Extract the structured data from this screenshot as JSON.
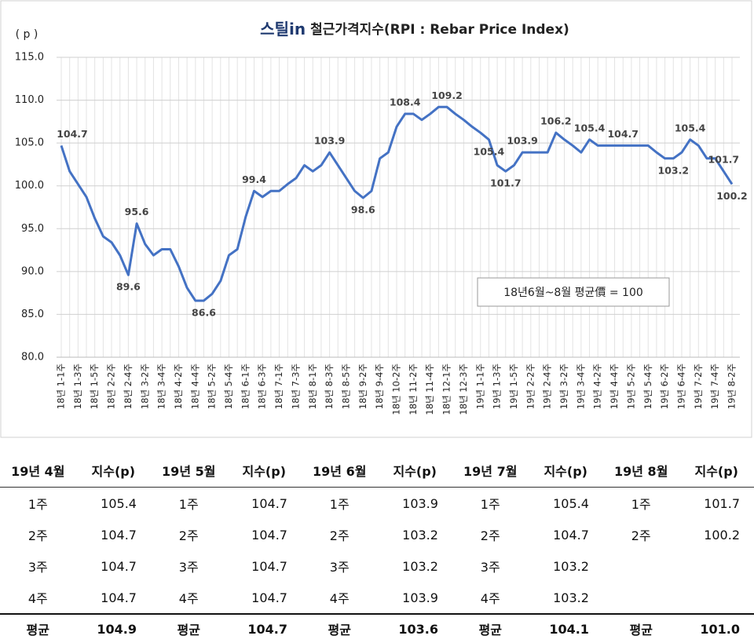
{
  "chart_data": {
    "type": "line",
    "title_logo": "스틸in",
    "title": "철근가격지수(RPI : Rebar Price Index)",
    "y_label": "( p )",
    "annotation": "18년6월~8월 평균價 = 100",
    "categories": [
      "18년 1-1주",
      null,
      "18년 1-3주",
      null,
      "18년 1-5주",
      null,
      "18년 2-2주",
      null,
      "18년 2-4주",
      null,
      "18년 3-2주",
      null,
      "18년 3-4주",
      null,
      "18년 4-2주",
      null,
      "18년 4-4주",
      null,
      "18년 5-2주",
      null,
      "18년 5-4주",
      null,
      "18년 6-1주",
      null,
      "18년 6-3주",
      null,
      "18년 7-1주",
      null,
      "18년 7-3주",
      null,
      "18년 8-1주",
      null,
      "18년 8-3주",
      null,
      "18년 8-5주",
      null,
      "18년 9-2주",
      null,
      "18년 9-4주",
      null,
      "18년 10-2주",
      null,
      "18년 11-2주",
      null,
      "18년 11-4주",
      null,
      "18년 12-1주",
      null,
      "18년 12-3주",
      null,
      "19년 1-1주",
      null,
      "19년 1-3주",
      null,
      "19년 1-5주",
      null,
      "19년 2-2주",
      null,
      "19년 2-4주",
      null,
      "19년 3-2주",
      null,
      "19년 3-4주",
      null,
      "19년 4-2주",
      null,
      "19년 4-4주",
      null,
      "19년 5-2주",
      null,
      "19년 5-4주",
      null,
      "19년 6-2주",
      null,
      "19년 6-4주",
      null,
      "19년 7-2주",
      null,
      "19년 7-4주",
      null,
      "19년 8-2주"
    ],
    "series": [
      {
        "name": "철근가격지수",
        "color": "#4472c4",
        "values": [
          104.7,
          101.7,
          100.2,
          98.7,
          96.2,
          94.1,
          93.4,
          91.9,
          89.6,
          95.6,
          93.2,
          91.9,
          92.6,
          92.6,
          90.6,
          88.1,
          86.6,
          86.6,
          87.4,
          88.9,
          91.9,
          92.6,
          96.4,
          99.4,
          98.7,
          99.4,
          99.4,
          100.2,
          100.9,
          102.4,
          101.7,
          102.4,
          103.9,
          102.4,
          100.9,
          99.4,
          98.6,
          99.4,
          103.2,
          103.9,
          106.9,
          108.4,
          108.4,
          107.7,
          108.4,
          109.2,
          109.2,
          108.4,
          107.7,
          106.9,
          106.2,
          105.4,
          102.4,
          101.7,
          102.4,
          103.9,
          103.9,
          103.9,
          103.9,
          106.2,
          105.4,
          104.7,
          103.9,
          105.4,
          104.7,
          104.7,
          104.7,
          104.7,
          104.7,
          104.7,
          104.7,
          103.9,
          103.2,
          103.2,
          103.9,
          105.4,
          104.7,
          103.2,
          103.2,
          101.7,
          100.2
        ],
        "value_labels": [
          "104.7",
          null,
          null,
          null,
          null,
          null,
          null,
          null,
          "89.6",
          "95.6",
          null,
          null,
          null,
          null,
          null,
          null,
          null,
          "86.6",
          null,
          null,
          null,
          null,
          null,
          "99.4",
          null,
          null,
          null,
          null,
          null,
          null,
          null,
          null,
          "103.9",
          null,
          null,
          null,
          "98.6",
          null,
          null,
          null,
          null,
          "108.4",
          null,
          null,
          null,
          null,
          "109.2",
          null,
          null,
          null,
          null,
          "105.4",
          null,
          "101.7",
          null,
          "103.9",
          null,
          null,
          null,
          "106.2",
          null,
          null,
          null,
          "105.4",
          null,
          null,
          null,
          "104.7",
          null,
          null,
          null,
          null,
          null,
          "103.2",
          null,
          "105.4",
          null,
          null,
          null,
          "101.7",
          "100.2"
        ]
      }
    ],
    "ylim": [
      80,
      115
    ],
    "yticks": [
      {
        "value": 80,
        "label": "80.0"
      },
      {
        "value": 85,
        "label": "85.0"
      },
      {
        "value": 90,
        "label": "90.0"
      },
      {
        "value": 95,
        "label": "95.0"
      },
      {
        "value": 100,
        "label": "100.0"
      },
      {
        "value": 105,
        "label": "105.0"
      },
      {
        "value": 110,
        "label": "110.0"
      },
      {
        "value": 115,
        "label": "115.0"
      }
    ],
    "grid": true
  },
  "table": {
    "header": [
      "19년 4월",
      "지수(p)",
      "19년 5월",
      "지수(p)",
      "19년 6월",
      "지수(p)",
      "19년 7월",
      "지수(p)",
      "19년 8월",
      "지수(p)"
    ],
    "rows": [
      [
        "1주",
        "105.4",
        "1주",
        "104.7",
        "1주",
        "103.9",
        "1주",
        "105.4",
        "1주",
        "101.7"
      ],
      [
        "2주",
        "104.7",
        "2주",
        "104.7",
        "2주",
        "103.2",
        "2주",
        "104.7",
        "2주",
        "100.2"
      ],
      [
        "3주",
        "104.7",
        "3주",
        "104.7",
        "3주",
        "103.2",
        "3주",
        "103.2",
        null,
        null
      ],
      [
        "4주",
        "104.7",
        "4주",
        "104.7",
        "4주",
        "103.9",
        "4주",
        "103.2",
        null,
        null
      ],
      [
        "평균",
        "104.9",
        "평균",
        "104.7",
        "평균",
        "103.6",
        "평균",
        "104.1",
        "평균",
        "101.0"
      ]
    ]
  }
}
